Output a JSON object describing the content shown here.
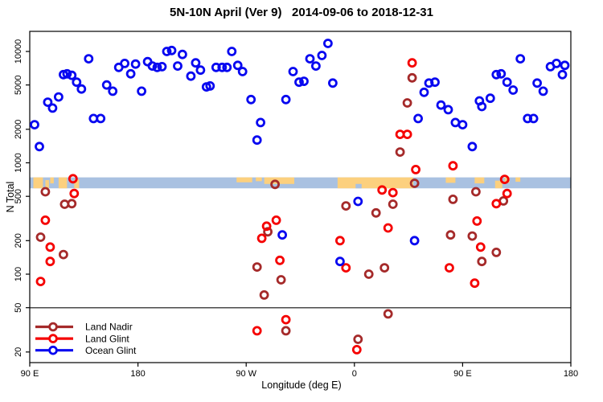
{
  "chart_data": {
    "type": "scatter",
    "title": "5N-10N April (Ver 9)   2014-09-06 to 2018-12-31",
    "xlabel": "Longitude (deg E)",
    "ylabel": "N Total",
    "y_scale": "log10",
    "ylim": [
      15,
      15000
    ],
    "xlim_axis_deg": [
      90,
      540
    ],
    "x_axis_note": "longitude axis wraps eastward: 90E, 180, 90W, 0, 90E, 180",
    "x_ticks": [
      {
        "pos": 90,
        "label": "90 E"
      },
      {
        "pos": 180,
        "label": "180"
      },
      {
        "pos": 270,
        "label": "90 W"
      },
      {
        "pos": 360,
        "label": "0"
      },
      {
        "pos": 450,
        "label": "90 E"
      },
      {
        "pos": 540,
        "label": "180"
      }
    ],
    "y_ticks": [
      20,
      50,
      100,
      200,
      500,
      1000,
      2000,
      5000,
      10000
    ],
    "reference_line_y": 50,
    "reference_line_color": "#4a4a4a",
    "grid": false,
    "legend_position": "bottom-left",
    "series": [
      {
        "name": "Land Nadir",
        "color": "#A52A2A",
        "points": [
          [
            103,
            550
          ],
          [
            119,
            425
          ],
          [
            125,
            430
          ],
          [
            99,
            215
          ],
          [
            118,
            150
          ],
          [
            294,
            640
          ],
          [
            288,
            240
          ],
          [
            279,
            116
          ],
          [
            285,
            65
          ],
          [
            299,
            89
          ],
          [
            303,
            31
          ],
          [
            363,
            26
          ],
          [
            353,
            410
          ],
          [
            378,
            355
          ],
          [
            392,
            425
          ],
          [
            372,
            100
          ],
          [
            385,
            114
          ],
          [
            388,
            44
          ],
          [
            398,
            1250
          ],
          [
            404,
            3450
          ],
          [
            408,
            5800
          ],
          [
            410,
            655
          ],
          [
            442,
            470
          ],
          [
            461,
            550
          ],
          [
            440,
            225
          ],
          [
            458,
            220
          ],
          [
            478,
            157
          ],
          [
            484,
            455
          ],
          [
            466,
            130
          ]
        ]
      },
      {
        "name": "Land Glint",
        "color": "#F50000",
        "points": [
          [
            126,
            720
          ],
          [
            127,
            530
          ],
          [
            103,
            305
          ],
          [
            107,
            175
          ],
          [
            107,
            130
          ],
          [
            99,
            86
          ],
          [
            295,
            305
          ],
          [
            287,
            270
          ],
          [
            283,
            210
          ],
          [
            348,
            200
          ],
          [
            388,
            260
          ],
          [
            298,
            133
          ],
          [
            353,
            114
          ],
          [
            303,
            39
          ],
          [
            279,
            31
          ],
          [
            362,
            21
          ],
          [
            383,
            570
          ],
          [
            392,
            540
          ],
          [
            398,
            1800
          ],
          [
            404,
            1800
          ],
          [
            408,
            7900
          ],
          [
            411,
            870
          ],
          [
            442,
            940
          ],
          [
            485,
            710
          ],
          [
            478,
            430
          ],
          [
            487,
            530
          ],
          [
            462,
            300
          ],
          [
            465,
            175
          ],
          [
            439,
            114
          ],
          [
            460,
            83
          ]
        ]
      },
      {
        "name": "Ocean Glint",
        "color": "#0808F0",
        "points": [
          [
            94,
            2200
          ],
          [
            98,
            1400
          ],
          [
            105,
            3500
          ],
          [
            109,
            3100
          ],
          [
            114,
            3900
          ],
          [
            118,
            6200
          ],
          [
            121,
            6300
          ],
          [
            125,
            6100
          ],
          [
            129,
            5300
          ],
          [
            133,
            4600
          ],
          [
            139,
            8600
          ],
          [
            143,
            2500
          ],
          [
            149,
            2500
          ],
          [
            154,
            5000
          ],
          [
            159,
            4400
          ],
          [
            164,
            7200
          ],
          [
            169,
            7800
          ],
          [
            174,
            6300
          ],
          [
            178,
            7700
          ],
          [
            183,
            4400
          ],
          [
            188,
            8100
          ],
          [
            192,
            7400
          ],
          [
            196,
            7200
          ],
          [
            200,
            7300
          ],
          [
            204,
            10000
          ],
          [
            208,
            10200
          ],
          [
            213,
            7400
          ],
          [
            217,
            9400
          ],
          [
            224,
            6000
          ],
          [
            228,
            7900
          ],
          [
            232,
            6800
          ],
          [
            237,
            4800
          ],
          [
            240,
            4900
          ],
          [
            245,
            7200
          ],
          [
            250,
            7200
          ],
          [
            254,
            7200
          ],
          [
            258,
            10000
          ],
          [
            263,
            7500
          ],
          [
            267,
            6600
          ],
          [
            274,
            3700
          ],
          [
            282,
            2300
          ],
          [
            279,
            1600
          ],
          [
            303,
            3700
          ],
          [
            309,
            6600
          ],
          [
            314,
            5300
          ],
          [
            318,
            5400
          ],
          [
            323,
            8600
          ],
          [
            328,
            7400
          ],
          [
            333,
            9200
          ],
          [
            338,
            11800
          ],
          [
            342,
            5200
          ],
          [
            413,
            2500
          ],
          [
            418,
            4300
          ],
          [
            422,
            5200
          ],
          [
            427,
            5300
          ],
          [
            432,
            3300
          ],
          [
            438,
            3000
          ],
          [
            444,
            2300
          ],
          [
            450,
            2200
          ],
          [
            458,
            1400
          ],
          [
            464,
            3600
          ],
          [
            466,
            3200
          ],
          [
            473,
            3800
          ],
          [
            478,
            6200
          ],
          [
            482,
            6300
          ],
          [
            487,
            5300
          ],
          [
            492,
            4500
          ],
          [
            498,
            8600
          ],
          [
            504,
            2500
          ],
          [
            509,
            2500
          ],
          [
            512,
            5200
          ],
          [
            517,
            4400
          ],
          [
            523,
            7300
          ],
          [
            528,
            7800
          ],
          [
            533,
            6200
          ],
          [
            535,
            7500
          ],
          [
            300,
            225
          ],
          [
            348,
            130
          ],
          [
            363,
            450
          ],
          [
            410,
            200
          ]
        ]
      }
    ],
    "map_band": {
      "description": "world-map strip at the 5N-10N latitude band drawn across the plot",
      "value_range": [
        590,
        740
      ],
      "ocean_color": "#A9C1E1",
      "land_color": "#FCD07E",
      "land_patches": [
        {
          "lon": [
            93,
            101
          ],
          "frac": [
            0,
            1
          ]
        },
        {
          "lon": [
            103,
            106
          ],
          "frac": [
            0.25,
            1
          ]
        },
        {
          "lon": [
            107,
            110
          ],
          "frac": [
            0,
            0.55
          ]
        },
        {
          "lon": [
            114,
            121
          ],
          "frac": [
            0,
            1
          ]
        },
        {
          "lon": [
            127,
            131
          ],
          "frac": [
            0.2,
            1
          ]
        },
        {
          "lon": [
            262,
            275
          ],
          "frac": [
            0,
            0.45
          ]
        },
        {
          "lon": [
            278,
            283
          ],
          "frac": [
            0,
            0.35
          ]
        },
        {
          "lon": [
            285,
            310
          ],
          "frac": [
            0,
            0.6
          ]
        },
        {
          "lon": [
            346,
            409
          ],
          "frac": [
            0,
            1
          ]
        },
        {
          "lon": [
            436,
            444
          ],
          "frac": [
            0,
            0.5
          ]
        },
        {
          "lon": [
            460,
            468
          ],
          "frac": [
            0,
            0.55
          ]
        },
        {
          "lon": [
            477,
            483
          ],
          "frac": [
            0.3,
            1
          ]
        },
        {
          "lon": [
            485,
            489
          ],
          "frac": [
            0,
            0.5
          ]
        },
        {
          "lon": [
            494,
            498
          ],
          "frac": [
            0,
            0.4
          ]
        }
      ],
      "ocean_notches": [
        {
          "lon": [
            361,
            366
          ],
          "frac": [
            0.6,
            1
          ]
        }
      ]
    },
    "legend": {
      "items": [
        {
          "label": "Land Nadir",
          "color": "#A52A2A"
        },
        {
          "label": "Land Glint",
          "color": "#F50000"
        },
        {
          "label": "Ocean Glint",
          "color": "#0808F0"
        }
      ]
    }
  }
}
